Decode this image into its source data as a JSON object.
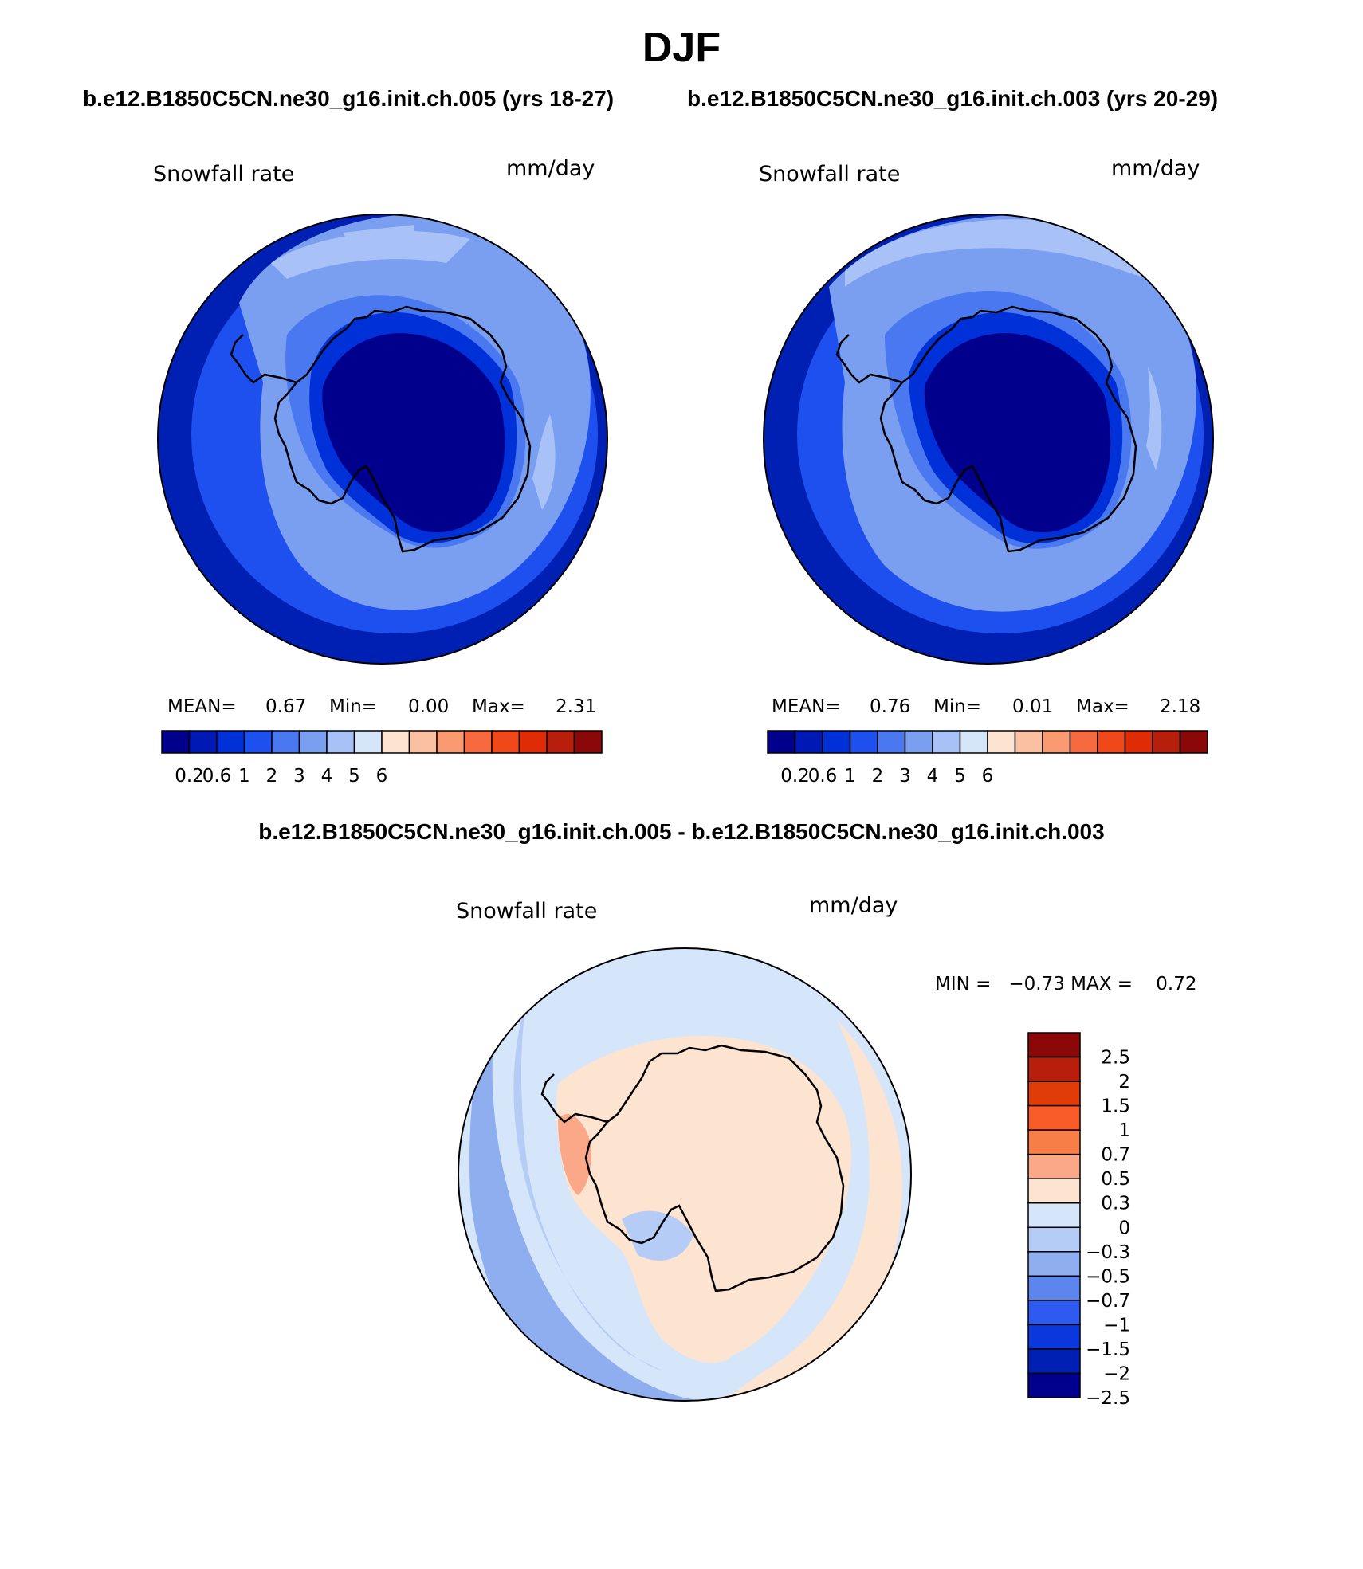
{
  "figure": {
    "title": "DJF",
    "diff_title": "b.e12.B1850C5CN.ne30_g16.init.ch.005 - b.e12.B1850C5CN.ne30_g16.init.ch.003"
  },
  "chart_data": [
    {
      "type": "heatmap",
      "projection": "south polar stereographic",
      "case_title": "b.e12.B1850C5CN.ne30_g16.init.ch.005 (yrs 18-27)",
      "field_label": "Snowfall rate",
      "units": "mm/day",
      "stats": {
        "mean_label": "MEAN=",
        "mean": "0.67",
        "min_label": "Min=",
        "min": "0.00",
        "max_label": "Max=",
        "max": "2.31"
      },
      "colorbar": {
        "orientation": "horizontal",
        "tick_labels": [
          "0.2",
          "0.6",
          "1",
          "2",
          "3",
          "4",
          "5",
          "6"
        ],
        "colors": [
          "#00008c",
          "#0018b4",
          "#0030d8",
          "#1e50f0",
          "#4a78f0",
          "#7a9ef0",
          "#a8c2f8",
          "#d6e6fa",
          "#fde4d0",
          "#fbc0a2",
          "#f99a72",
          "#f76a40",
          "#f04818",
          "#e02c06",
          "#b81e0c",
          "#8a0808"
        ]
      }
    },
    {
      "type": "heatmap",
      "projection": "south polar stereographic",
      "case_title": "b.e12.B1850C5CN.ne30_g16.init.ch.003 (yrs 20-29)",
      "field_label": "Snowfall rate",
      "units": "mm/day",
      "stats": {
        "mean_label": "MEAN=",
        "mean": "0.76",
        "min_label": "Min=",
        "min": "0.01",
        "max_label": "Max=",
        "max": "2.18"
      },
      "colorbar": {
        "orientation": "horizontal",
        "tick_labels": [
          "0.2",
          "0.6",
          "1",
          "2",
          "3",
          "4",
          "5",
          "6"
        ],
        "colors": [
          "#00008c",
          "#0018b4",
          "#0030d8",
          "#1e50f0",
          "#4a78f0",
          "#7a9ef0",
          "#a8c2f8",
          "#d6e6fa",
          "#fde4d0",
          "#fbc0a2",
          "#f99a72",
          "#f76a40",
          "#f04818",
          "#e02c06",
          "#b81e0c",
          "#8a0808"
        ]
      }
    },
    {
      "type": "heatmap",
      "projection": "south polar stereographic",
      "field_label": "Snowfall rate",
      "units": "mm/day",
      "stats_text": "MIN =   −0.73 MAX =    0.72",
      "colorbar": {
        "orientation": "vertical",
        "tick_labels": [
          "2.5",
          "2",
          "1.5",
          "1",
          "0.7",
          "0.5",
          "0.3",
          "0",
          "−0.3",
          "−0.5",
          "−0.7",
          "−1",
          "−1.5",
          "−2",
          "−2.5"
        ],
        "colors": [
          "#8a0808",
          "#b81e0c",
          "#e03c0a",
          "#f85a28",
          "#f87e48",
          "#fba888",
          "#fde4d0",
          "#d6e6fa",
          "#b4ccf6",
          "#8eaef0",
          "#5c86ee",
          "#2e5af0",
          "#0a38dc",
          "#0020b4",
          "#00008c"
        ]
      }
    }
  ]
}
